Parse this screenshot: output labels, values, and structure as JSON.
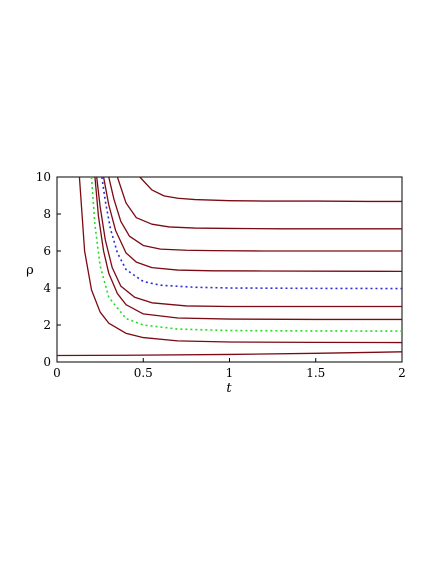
{
  "chart_data": {
    "type": "line",
    "title": "",
    "xlabel": "t",
    "ylabel": "ρ",
    "xlim": [
      0,
      2
    ],
    "ylim": [
      0,
      10
    ],
    "xticks": [
      0,
      0.5,
      1,
      1.5,
      2
    ],
    "xtick_labels": [
      "0",
      "0.5",
      "1",
      "1.5",
      "2"
    ],
    "yticks": [
      0,
      2,
      4,
      6,
      8,
      10
    ],
    "ytick_labels": [
      "0",
      "2",
      "4",
      "6",
      "8",
      "10"
    ],
    "grid": false,
    "legend": "none",
    "colors": {
      "solid": "#7a0a14",
      "blue_dotted": "#2a2ad8",
      "green_dotted": "#22dd22"
    },
    "series": [
      {
        "style": "solid",
        "color": "#7a0a14",
        "x": [
          0,
          0.5,
          1,
          1.5,
          2
        ],
        "values": [
          0.35,
          0.37,
          0.41,
          0.47,
          0.55
        ]
      },
      {
        "style": "solid",
        "color": "#7a0a14",
        "x": [
          0.13,
          0.16,
          0.2,
          0.25,
          0.3,
          0.4,
          0.5,
          0.7,
          1,
          1.5,
          2
        ],
        "values": [
          10,
          6.0,
          3.9,
          2.7,
          2.1,
          1.55,
          1.32,
          1.14,
          1.08,
          1.06,
          1.05
        ]
      },
      {
        "style": "dotted",
        "color": "#22dd22",
        "x": [
          0.2,
          0.22,
          0.25,
          0.3,
          0.4,
          0.5,
          0.7,
          1,
          1.5,
          2
        ],
        "values": [
          10,
          7.4,
          5.2,
          3.5,
          2.35,
          2.0,
          1.78,
          1.7,
          1.68,
          1.67
        ]
      },
      {
        "style": "solid",
        "color": "#7a0a14",
        "x": [
          0.22,
          0.24,
          0.27,
          0.3,
          0.35,
          0.4,
          0.5,
          0.7,
          1,
          1.5,
          2
        ],
        "values": [
          10,
          7.9,
          6.0,
          4.8,
          3.7,
          3.1,
          2.6,
          2.38,
          2.32,
          2.3,
          2.3
        ]
      },
      {
        "style": "solid",
        "color": "#7a0a14",
        "x": [
          0.23,
          0.25,
          0.28,
          0.32,
          0.37,
          0.45,
          0.55,
          0.75,
          1,
          1.5,
          2
        ],
        "values": [
          10,
          8.4,
          6.6,
          5.1,
          4.1,
          3.5,
          3.2,
          3.03,
          3.0,
          3.0,
          3.0
        ]
      },
      {
        "style": "dotted",
        "color": "#2a2ad8",
        "x": [
          0.26,
          0.28,
          0.31,
          0.35,
          0.4,
          0.5,
          0.6,
          0.8,
          1,
          1.5,
          2
        ],
        "values": [
          10,
          8.7,
          7.2,
          5.9,
          5.0,
          4.35,
          4.15,
          4.04,
          4.0,
          3.98,
          3.97
        ]
      },
      {
        "style": "solid",
        "color": "#7a0a14",
        "x": [
          0.27,
          0.3,
          0.34,
          0.4,
          0.46,
          0.55,
          0.7,
          0.9,
          1.2,
          1.6,
          2
        ],
        "values": [
          10,
          8.5,
          7.1,
          5.9,
          5.4,
          5.1,
          4.97,
          4.93,
          4.92,
          4.91,
          4.9
        ]
      },
      {
        "style": "solid",
        "color": "#7a0a14",
        "x": [
          0.3,
          0.33,
          0.37,
          0.42,
          0.5,
          0.6,
          0.75,
          0.9,
          1.2,
          1.6,
          2
        ],
        "values": [
          10,
          8.8,
          7.6,
          6.8,
          6.3,
          6.1,
          6.04,
          6.02,
          6.0,
          6.0,
          6.0
        ]
      },
      {
        "style": "solid",
        "color": "#7a0a14",
        "x": [
          0.35,
          0.4,
          0.46,
          0.55,
          0.65,
          0.8,
          1,
          1.3,
          1.6,
          2
        ],
        "values": [
          10,
          8.6,
          7.8,
          7.45,
          7.3,
          7.24,
          7.22,
          7.2,
          7.2,
          7.2
        ]
      },
      {
        "style": "solid",
        "color": "#7a0a14",
        "x": [
          0.48,
          0.55,
          0.62,
          0.7,
          0.8,
          1,
          1.2,
          1.5,
          1.8,
          2
        ],
        "values": [
          10,
          9.3,
          8.98,
          8.85,
          8.78,
          8.72,
          8.7,
          8.7,
          8.68,
          8.68
        ]
      }
    ]
  }
}
